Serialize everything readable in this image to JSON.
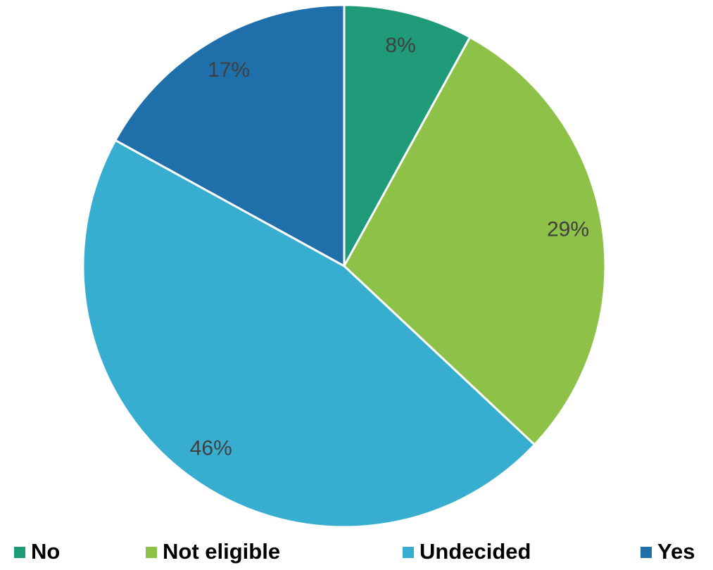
{
  "chart_data": {
    "type": "pie",
    "categories": [
      "No",
      "Not eligible",
      "Undecided",
      "Yes"
    ],
    "values": [
      8,
      29,
      46,
      17
    ],
    "value_labels": [
      "8%",
      "29%",
      "46%",
      "17%"
    ],
    "colors": [
      "#1f9b7a",
      "#8dc147",
      "#37aecf",
      "#1f6fab"
    ],
    "legend": "bottom"
  }
}
